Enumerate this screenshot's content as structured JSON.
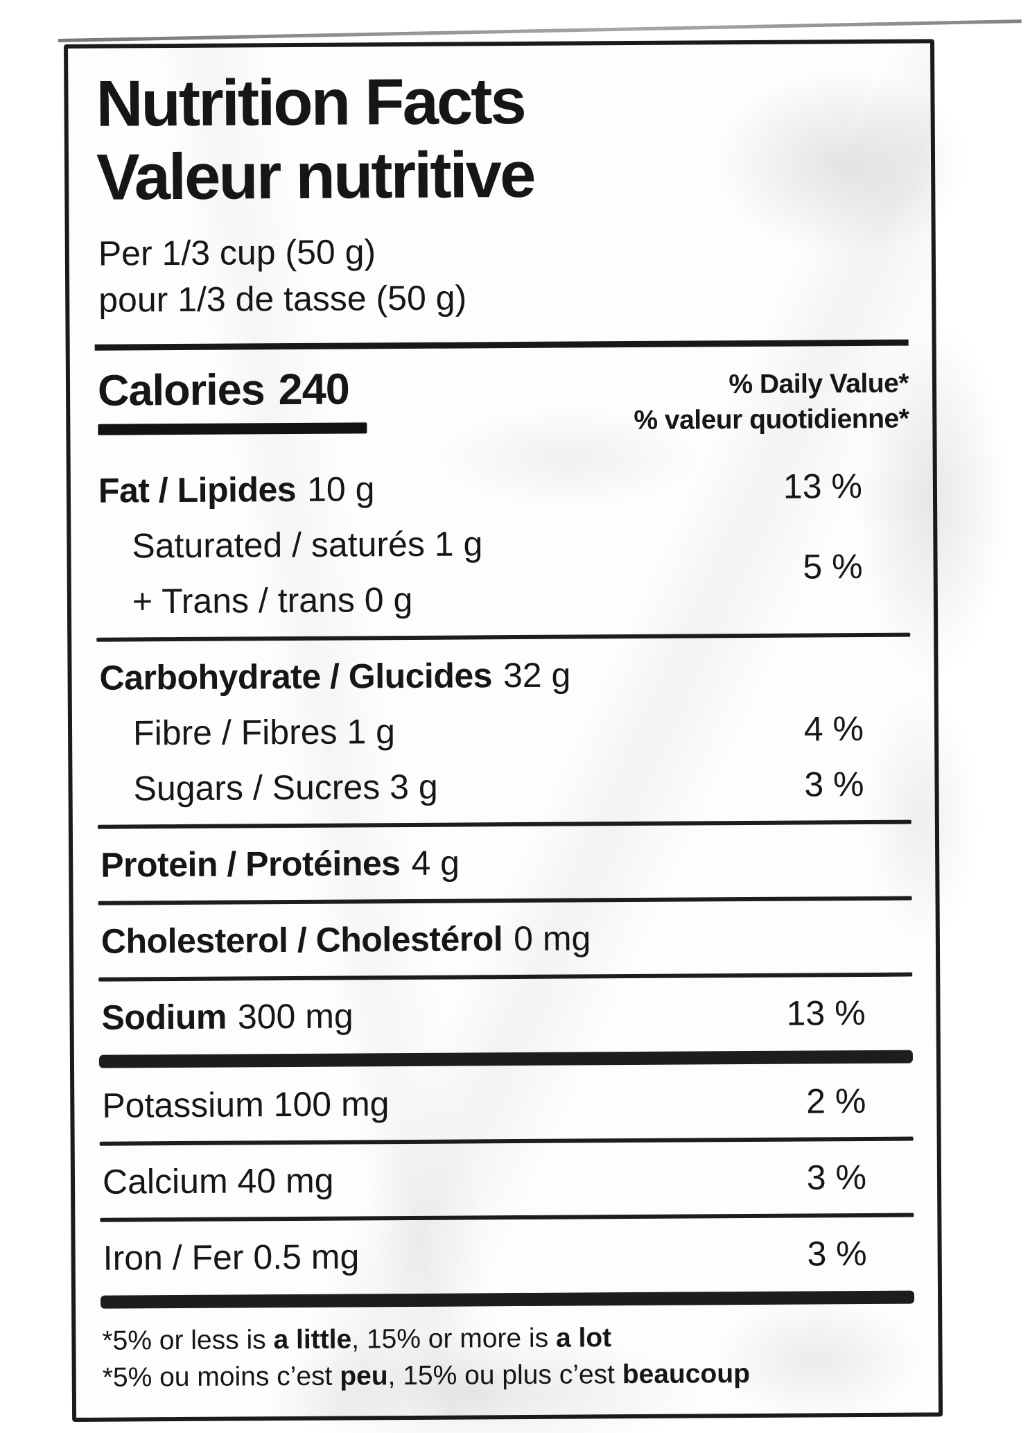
{
  "label": {
    "title_en": "Nutrition Facts",
    "title_fr": "Valeur nutritive",
    "serving_en": "Per 1/3 cup (50 g)",
    "serving_fr": "pour 1/3 de tasse (50 g)",
    "calories_label": "Calories",
    "calories_value": "240",
    "dv_header_en": "% Daily Value*",
    "dv_header_fr": "% valeur quotidienne*",
    "rows": [
      {
        "label_bold": "Fat / Lipides",
        "label_rest": "10 g",
        "percent": "13 %"
      },
      {
        "label_bold": "",
        "label_rest": "Saturated / saturés 1 g",
        "percent": "5 %"
      },
      {
        "label_bold": "",
        "label_rest": "+ Trans / trans 0 g",
        "percent": ""
      },
      {
        "label_bold": "Carbohydrate / Glucides",
        "label_rest": "32 g",
        "percent": ""
      },
      {
        "label_bold": "",
        "label_rest": "Fibre / Fibres 1 g",
        "percent": "4 %"
      },
      {
        "label_bold": "",
        "label_rest": "Sugars / Sucres 3 g",
        "percent": "3 %"
      },
      {
        "label_bold": "Protein / Protéines",
        "label_rest": "4 g",
        "percent": ""
      },
      {
        "label_bold": "Cholesterol / Cholestérol",
        "label_rest": "0 mg",
        "percent": ""
      },
      {
        "label_bold": "Sodium",
        "label_rest": "300 mg",
        "percent": "13 %"
      },
      {
        "label_bold": "",
        "label_rest": "Potassium 100 mg",
        "percent": "2 %"
      },
      {
        "label_bold": "",
        "label_rest": "Calcium 40 mg",
        "percent": "3 %"
      },
      {
        "label_bold": "",
        "label_rest": "Iron / Fer 0.5 mg",
        "percent": "3 %"
      }
    ],
    "footnote_en": [
      "*5% or less is ",
      "a little",
      ", 15% or more is ",
      "a lot"
    ],
    "footnote_fr": [
      "*5% ou moins c’est ",
      "peu",
      ", 15% ou plus c’est ",
      "beaucoup"
    ],
    "colors": {
      "ink": "#1a1a1a",
      "paper": "#fdfdfb"
    }
  }
}
